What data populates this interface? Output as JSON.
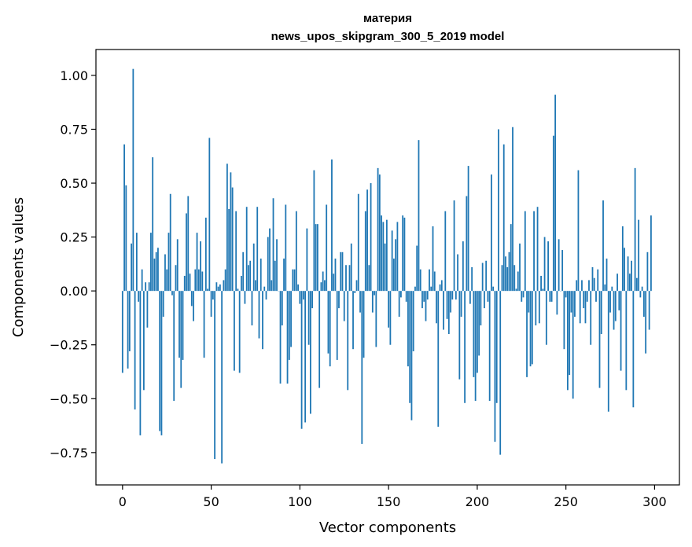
{
  "chart_data": {
    "type": "bar",
    "title_lines": [
      "материя",
      "news_upos_skipgram_300_5_2019 model"
    ],
    "xlabel": "Vector components",
    "ylabel": "Components values",
    "xlim": [
      -15,
      314
    ],
    "ylim": [
      -0.9,
      1.12
    ],
    "xticks": [
      0,
      50,
      100,
      150,
      200,
      250,
      300
    ],
    "yticks": [
      -0.75,
      -0.5,
      -0.25,
      0.0,
      0.25,
      0.5,
      0.75,
      1.0
    ],
    "ytick_labels": [
      "−0.75",
      "−0.50",
      "−0.25",
      "0.00",
      "0.25",
      "0.50",
      "0.75",
      "1.00"
    ],
    "xtick_labels": [
      "0",
      "50",
      "100",
      "150",
      "200",
      "250",
      "300"
    ],
    "grid": false,
    "color": "#1f77b4",
    "values": [
      -0.38,
      0.68,
      0.49,
      -0.36,
      -0.28,
      0.22,
      1.03,
      -0.55,
      0.27,
      -0.05,
      -0.67,
      0.1,
      -0.46,
      0.04,
      -0.17,
      0.04,
      0.27,
      0.62,
      0.15,
      0.18,
      0.2,
      -0.65,
      -0.67,
      -0.12,
      0.17,
      0.1,
      0.27,
      0.45,
      -0.02,
      -0.51,
      0.12,
      0.24,
      -0.31,
      -0.45,
      -0.32,
      0.07,
      0.36,
      0.44,
      0.08,
      -0.07,
      -0.14,
      0.1,
      0.27,
      0.1,
      0.23,
      0.09,
      -0.31,
      0.34,
      0.01,
      0.71,
      -0.12,
      -0.04,
      -0.78,
      0.04,
      0.02,
      0.03,
      -0.8,
      0.05,
      0.1,
      0.59,
      0.38,
      0.55,
      0.48,
      -0.37,
      0.37,
      0.01,
      -0.38,
      0.07,
      0.18,
      -0.06,
      0.39,
      0.12,
      0.14,
      -0.16,
      0.22,
      0.05,
      0.39,
      -0.22,
      0.15,
      -0.27,
      0.02,
      -0.04,
      0.25,
      0.29,
      0.05,
      0.43,
      0.14,
      0.24,
      0.0,
      -0.43,
      -0.16,
      0.15,
      0.4,
      -0.43,
      -0.32,
      -0.26,
      0.1,
      0.1,
      0.37,
      0.03,
      -0.06,
      -0.64,
      -0.04,
      -0.61,
      0.29,
      -0.25,
      -0.57,
      -0.08,
      0.56,
      0.31,
      0.31,
      -0.45,
      0.04,
      0.09,
      0.05,
      0.4,
      -0.29,
      -0.35,
      0.61,
      0.08,
      0.15,
      -0.32,
      -0.08,
      0.18,
      0.18,
      -0.14,
      0.12,
      -0.46,
      0.12,
      0.22,
      -0.27,
      -0.01,
      0.05,
      0.45,
      -0.1,
      -0.71,
      -0.31,
      0.37,
      0.47,
      0.12,
      0.5,
      -0.1,
      -0.02,
      -0.26,
      0.57,
      0.54,
      0.35,
      0.32,
      0.22,
      0.33,
      -0.17,
      -0.25,
      0.28,
      0.15,
      0.24,
      0.32,
      -0.12,
      -0.03,
      0.35,
      0.34,
      -0.05,
      -0.35,
      -0.52,
      -0.6,
      -0.28,
      0.02,
      0.21,
      0.7,
      0.1,
      -0.08,
      -0.05,
      -0.14,
      -0.04,
      0.1,
      0.02,
      0.3,
      0.09,
      -0.15,
      -0.63,
      0.03,
      0.05,
      -0.18,
      0.37,
      -0.13,
      -0.2,
      -0.1,
      -0.04,
      0.42,
      -0.04,
      0.17,
      -0.41,
      -0.12,
      0.23,
      -0.52,
      0.44,
      0.58,
      -0.06,
      0.11,
      -0.4,
      -0.51,
      -0.38,
      -0.3,
      -0.16,
      0.13,
      -0.08,
      0.14,
      -0.05,
      -0.51,
      0.54,
      0.02,
      -0.7,
      -0.52,
      0.75,
      -0.76,
      0.12,
      0.68,
      0.16,
      0.11,
      0.18,
      0.31,
      0.76,
      0.12,
      0.01,
      0.09,
      0.22,
      -0.05,
      -0.03,
      0.37,
      -0.4,
      -0.1,
      -0.35,
      -0.34,
      0.37,
      -0.16,
      0.39,
      -0.15,
      0.07,
      0.01,
      0.25,
      -0.25,
      0.23,
      -0.05,
      -0.05,
      0.72,
      0.91,
      -0.11,
      0.24,
      0.0,
      0.19,
      -0.27,
      -0.03,
      -0.46,
      -0.39,
      -0.1,
      -0.5,
      -0.12,
      0.05,
      0.56,
      -0.15,
      0.05,
      -0.08,
      -0.15,
      -0.05,
      0.05,
      -0.25,
      0.11,
      0.06,
      -0.05,
      0.1,
      -0.45,
      -0.2,
      0.42,
      0.03,
      0.15,
      -0.56,
      -0.1,
      0.02,
      -0.18,
      -0.14,
      0.08,
      -0.09,
      -0.37,
      0.3,
      0.2,
      -0.46,
      0.16,
      0.08,
      0.14,
      -0.54,
      0.57,
      0.06,
      0.33,
      -0.03,
      0.02,
      -0.12,
      -0.29,
      0.18,
      -0.18,
      0.35
    ]
  }
}
